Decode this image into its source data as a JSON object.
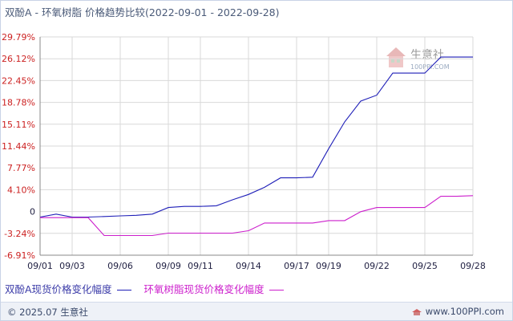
{
  "header": {
    "title": "双酚A - 环氧树脂 价格趋势比较(2022-09-01 - 2022-09-28)"
  },
  "watermark": {
    "brand": "生意社",
    "domain": "100PPI.COM"
  },
  "footer": {
    "copyright": "© 2025.07 生意社",
    "site": "www.100PPI.com"
  },
  "colors": {
    "series1": "#1f1fb8",
    "series2": "#cc1fcc",
    "grid": "#d9d9d9",
    "ytick": "#cc2222",
    "xtick": "#222244"
  },
  "chart_data": {
    "type": "line",
    "x": [
      "09/01",
      "09/02",
      "09/03",
      "09/04",
      "09/05",
      "09/06",
      "09/07",
      "09/08",
      "09/09",
      "09/10",
      "09/11",
      "09/12",
      "09/13",
      "09/14",
      "09/15",
      "09/16",
      "09/17",
      "09/18",
      "09/19",
      "09/20",
      "09/21",
      "09/22",
      "09/23",
      "09/24",
      "09/25",
      "09/26",
      "09/27",
      "09/28"
    ],
    "xticks": [
      "09/01",
      "09/03",
      "09/06",
      "09/09",
      "09/11",
      "09/14",
      "09/17",
      "09/19",
      "09/22",
      "09/25",
      "09/28"
    ],
    "yticks": [
      "29.79%",
      "26.12%",
      "22.45%",
      "18.78%",
      "15.11%",
      "11.44%",
      "7.77%",
      "4.10%",
      "0",
      "-3.24%",
      "-6.91%"
    ],
    "ylim": [
      -6.91,
      29.79
    ],
    "grid": true,
    "legend_position": "bottom",
    "series": [
      {
        "name": "双酚A现货价格变化幅度",
        "color": "#1f1fb8",
        "points": [
          [
            "09/01",
            -0.5
          ],
          [
            "09/02",
            0.0
          ],
          [
            "09/03",
            -0.5
          ],
          [
            "09/04",
            -0.5
          ],
          [
            "09/05",
            -0.4
          ],
          [
            "09/06",
            -0.3
          ],
          [
            "09/07",
            -0.2
          ],
          [
            "09/08",
            0.0
          ],
          [
            "09/09",
            1.1
          ],
          [
            "09/10",
            1.3
          ],
          [
            "09/11",
            1.3
          ],
          [
            "09/12",
            1.4
          ],
          [
            "09/13",
            2.4
          ],
          [
            "09/14",
            3.3
          ],
          [
            "09/15",
            4.5
          ],
          [
            "09/16",
            6.1
          ],
          [
            "09/17",
            6.1
          ],
          [
            "09/18",
            6.2
          ],
          [
            "09/19",
            11.0
          ],
          [
            "09/20",
            15.5
          ],
          [
            "09/21",
            19.0
          ],
          [
            "09/22",
            20.0
          ],
          [
            "09/23",
            23.7
          ],
          [
            "09/24",
            23.7
          ],
          [
            "09/25",
            23.7
          ],
          [
            "09/26",
            26.4
          ],
          [
            "09/27",
            26.4
          ],
          [
            "09/28",
            26.4
          ]
        ]
      },
      {
        "name": "环氧树脂现货价格变化幅度",
        "color": "#cc1fcc",
        "points": [
          [
            "09/01",
            -0.6
          ],
          [
            "09/02",
            -0.6
          ],
          [
            "09/03",
            -0.6
          ],
          [
            "09/04",
            -0.6
          ],
          [
            "09/05",
            -3.6
          ],
          [
            "09/06",
            -3.6
          ],
          [
            "09/07",
            -3.6
          ],
          [
            "09/08",
            -3.6
          ],
          [
            "09/09",
            -3.2
          ],
          [
            "09/10",
            -3.2
          ],
          [
            "09/11",
            -3.2
          ],
          [
            "09/12",
            -3.2
          ],
          [
            "09/13",
            -3.2
          ],
          [
            "09/14",
            -2.8
          ],
          [
            "09/15",
            -1.5
          ],
          [
            "09/16",
            -1.5
          ],
          [
            "09/17",
            -1.5
          ],
          [
            "09/18",
            -1.5
          ],
          [
            "09/19",
            -1.1
          ],
          [
            "09/20",
            -1.1
          ],
          [
            "09/21",
            0.4
          ],
          [
            "09/22",
            1.1
          ],
          [
            "09/23",
            1.1
          ],
          [
            "09/24",
            1.1
          ],
          [
            "09/25",
            1.1
          ],
          [
            "09/26",
            3.0
          ],
          [
            "09/27",
            3.0
          ],
          [
            "09/28",
            3.1
          ]
        ]
      }
    ]
  }
}
